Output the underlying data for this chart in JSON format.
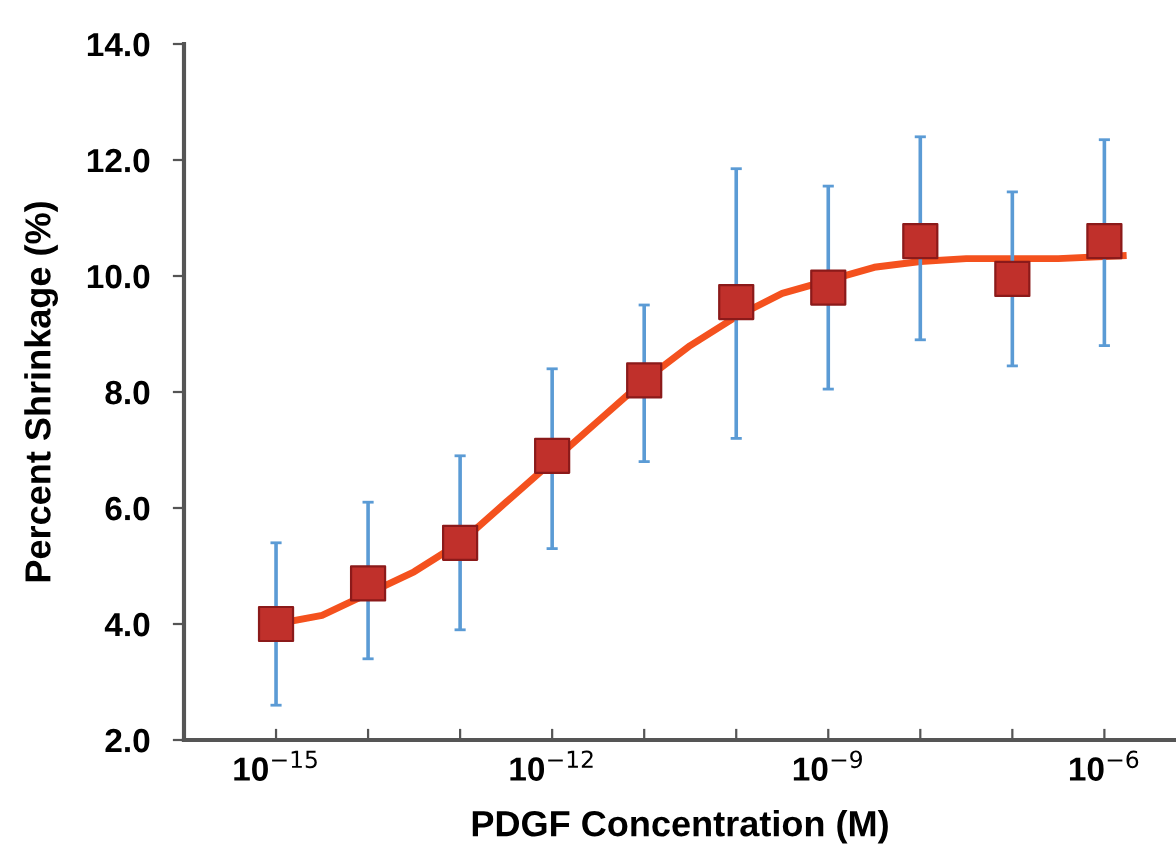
{
  "chart_data": {
    "type": "scatter",
    "xlabel": "PDGF Concentration (M)",
    "ylabel": "Percent Shrinkage (%)",
    "log": "x",
    "xlim": [
      1e-16,
      6e-06
    ],
    "ylim": [
      2.0,
      14.0
    ],
    "xticks": [
      {
        "value": 1e-15,
        "label": "10$^{−15}$"
      },
      {
        "value": 1e-14,
        "label": null
      },
      {
        "value": 1e-13,
        "label": null
      },
      {
        "value": 1e-12,
        "label": "10$^{−12}$"
      },
      {
        "value": 1e-11,
        "label": null
      },
      {
        "value": 1e-10,
        "label": null
      },
      {
        "value": 1e-09,
        "label": "10$^{−9}$"
      },
      {
        "value": 1e-08,
        "label": null
      },
      {
        "value": 1e-07,
        "label": null
      },
      {
        "value": 1e-06,
        "label": "10$^{−6}$"
      }
    ],
    "yticks": [
      {
        "value": 2,
        "label": "2.0"
      },
      {
        "value": 4,
        "label": "4.0"
      },
      {
        "value": 6,
        "label": "6.0"
      },
      {
        "value": 8,
        "label": "8.0"
      },
      {
        "value": 10,
        "label": "10.0"
      },
      {
        "value": 12,
        "label": "12.0"
      },
      {
        "value": 14,
        "label": "14.0"
      }
    ],
    "grid": false,
    "legend": false,
    "series": [
      {
        "type": "line",
        "x": [
          1e-15,
          3.16e-15,
          3.16e-14,
          1e-13,
          3.16e-13,
          1e-12,
          3.16e-12,
          1e-11,
          3.16e-11,
          1e-10,
          3.16e-10,
          3.16e-09,
          1e-08,
          3.16e-08,
          1e-07,
          3.16e-07,
          1.6e-06
        ],
        "values": [
          4.0,
          4.15,
          4.9,
          5.4,
          6.1,
          6.8,
          7.5,
          8.2,
          8.8,
          9.3,
          9.7,
          10.15,
          10.25,
          10.3,
          10.3,
          10.3,
          10.35
        ],
        "color": "#f4511e",
        "line_style": "solid"
      },
      {
        "type": "scatter",
        "color": "#c0302b",
        "marker": "square",
        "x": [
          1e-15,
          1e-14,
          1e-13,
          1e-12,
          1e-11,
          1e-10,
          1e-09,
          1e-08,
          1e-07,
          1e-06
        ],
        "values": [
          4.0,
          4.7,
          5.4,
          6.9,
          8.2,
          9.55,
          9.8,
          10.6,
          9.95,
          10.6
        ],
        "errors": [
          [
            2.6,
            5.4
          ],
          [
            3.4,
            6.1
          ],
          [
            3.9,
            6.9
          ],
          [
            5.3,
            8.4
          ],
          [
            6.8,
            9.5
          ],
          [
            7.2,
            11.85
          ],
          [
            8.05,
            11.55
          ],
          [
            8.9,
            12.4
          ],
          [
            8.45,
            11.45
          ],
          [
            8.8,
            12.35
          ]
        ]
      }
    ]
  }
}
